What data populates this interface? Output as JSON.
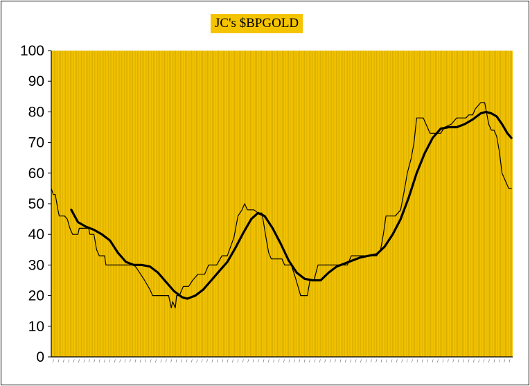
{
  "chart_data": {
    "type": "line",
    "title": "JC's $BPGOLD",
    "ylim": [
      0,
      100
    ],
    "yticks": [
      0,
      10,
      20,
      30,
      40,
      50,
      60,
      70,
      80,
      90,
      100
    ],
    "grid": "vertical",
    "background_color": "#f5c400",
    "gridline_color": "#a88a00",
    "series": [
      {
        "line_color": "#000000",
        "line_style": "thin",
        "points": [
          [
            0,
            55
          ],
          [
            1.5,
            53
          ],
          [
            3,
            53
          ],
          [
            5,
            48
          ],
          [
            6,
            46
          ],
          [
            10,
            46
          ],
          [
            12,
            45
          ],
          [
            14,
            42
          ],
          [
            16,
            40
          ],
          [
            20,
            40
          ],
          [
            21,
            42
          ],
          [
            28,
            42
          ],
          [
            29,
            40
          ],
          [
            32,
            40
          ],
          [
            34,
            35
          ],
          [
            36,
            33
          ],
          [
            40,
            33
          ],
          [
            41,
            30
          ],
          [
            62,
            30
          ],
          [
            64,
            29
          ],
          [
            67,
            27
          ],
          [
            70,
            25
          ],
          [
            74,
            22
          ],
          [
            76,
            20
          ],
          [
            88,
            20
          ],
          [
            89,
            18
          ],
          [
            90,
            16
          ],
          [
            91,
            18
          ],
          [
            93,
            16
          ],
          [
            94,
            20
          ],
          [
            96,
            20
          ],
          [
            99,
            23
          ],
          [
            103,
            23
          ],
          [
            106,
            25
          ],
          [
            110,
            27
          ],
          [
            115,
            27
          ],
          [
            118,
            30
          ],
          [
            124,
            30
          ],
          [
            128,
            33
          ],
          [
            132,
            33
          ],
          [
            137,
            39
          ],
          [
            140,
            46
          ],
          [
            143,
            48
          ],
          [
            145,
            50
          ],
          [
            147,
            48
          ],
          [
            152,
            48
          ],
          [
            155,
            47
          ],
          [
            158,
            47
          ],
          [
            161,
            39
          ],
          [
            163,
            34
          ],
          [
            165,
            32
          ],
          [
            173,
            32
          ],
          [
            175,
            30
          ],
          [
            180,
            30
          ],
          [
            183,
            26
          ],
          [
            185,
            23
          ],
          [
            187,
            20
          ],
          [
            192,
            20
          ],
          [
            194,
            25
          ],
          [
            197,
            25
          ],
          [
            200,
            30
          ],
          [
            222,
            30
          ],
          [
            225,
            33
          ],
          [
            244,
            33
          ],
          [
            247,
            35
          ],
          [
            249,
            40
          ],
          [
            251,
            46
          ],
          [
            258,
            46
          ],
          [
            262,
            48
          ],
          [
            265,
            55
          ],
          [
            267,
            60
          ],
          [
            270,
            65
          ],
          [
            272,
            70
          ],
          [
            274,
            78
          ],
          [
            279,
            78
          ],
          [
            282,
            75
          ],
          [
            284,
            73
          ],
          [
            292,
            73
          ],
          [
            295,
            75
          ],
          [
            300,
            76
          ],
          [
            304,
            78
          ],
          [
            311,
            78
          ],
          [
            313,
            79
          ],
          [
            316,
            79
          ],
          [
            318,
            81
          ],
          [
            322,
            83
          ],
          [
            325,
            83
          ],
          [
            328,
            76
          ],
          [
            330,
            74
          ],
          [
            332,
            74
          ],
          [
            334,
            72
          ],
          [
            336,
            67
          ],
          [
            338,
            60
          ],
          [
            341,
            57
          ],
          [
            343,
            55
          ],
          [
            345,
            55
          ]
        ]
      },
      {
        "line_color": "#000000",
        "line_style": "thick",
        "points": [
          [
            15,
            48
          ],
          [
            20,
            44
          ],
          [
            26,
            42.5
          ],
          [
            32,
            41.5
          ],
          [
            38,
            40
          ],
          [
            44,
            38
          ],
          [
            50,
            34
          ],
          [
            56,
            31
          ],
          [
            62,
            30
          ],
          [
            68,
            30
          ],
          [
            74,
            29.5
          ],
          [
            80,
            27.5
          ],
          [
            86,
            24.5
          ],
          [
            92,
            21.5
          ],
          [
            98,
            19.5
          ],
          [
            102,
            19
          ],
          [
            108,
            20
          ],
          [
            114,
            22
          ],
          [
            120,
            25
          ],
          [
            126,
            28
          ],
          [
            132,
            31
          ],
          [
            138,
            35.5
          ],
          [
            144,
            40.5
          ],
          [
            150,
            45
          ],
          [
            155,
            47
          ],
          [
            160,
            46
          ],
          [
            166,
            42
          ],
          [
            172,
            37
          ],
          [
            178,
            31.5
          ],
          [
            184,
            27.5
          ],
          [
            190,
            25.5
          ],
          [
            196,
            25
          ],
          [
            202,
            25
          ],
          [
            208,
            27.5
          ],
          [
            214,
            29.5
          ],
          [
            220,
            30.5
          ],
          [
            226,
            31.5
          ],
          [
            232,
            32.5
          ],
          [
            238,
            33
          ],
          [
            244,
            33.5
          ],
          [
            250,
            36
          ],
          [
            256,
            40
          ],
          [
            262,
            45
          ],
          [
            268,
            52
          ],
          [
            274,
            60
          ],
          [
            280,
            66.5
          ],
          [
            286,
            71.5
          ],
          [
            292,
            74.5
          ],
          [
            298,
            75
          ],
          [
            304,
            75
          ],
          [
            310,
            76
          ],
          [
            316,
            77.5
          ],
          [
            322,
            79.5
          ],
          [
            326,
            80
          ],
          [
            330,
            79.5
          ],
          [
            334,
            78.5
          ],
          [
            338,
            76
          ],
          [
            342,
            73
          ],
          [
            345,
            71.5
          ]
        ]
      }
    ]
  }
}
